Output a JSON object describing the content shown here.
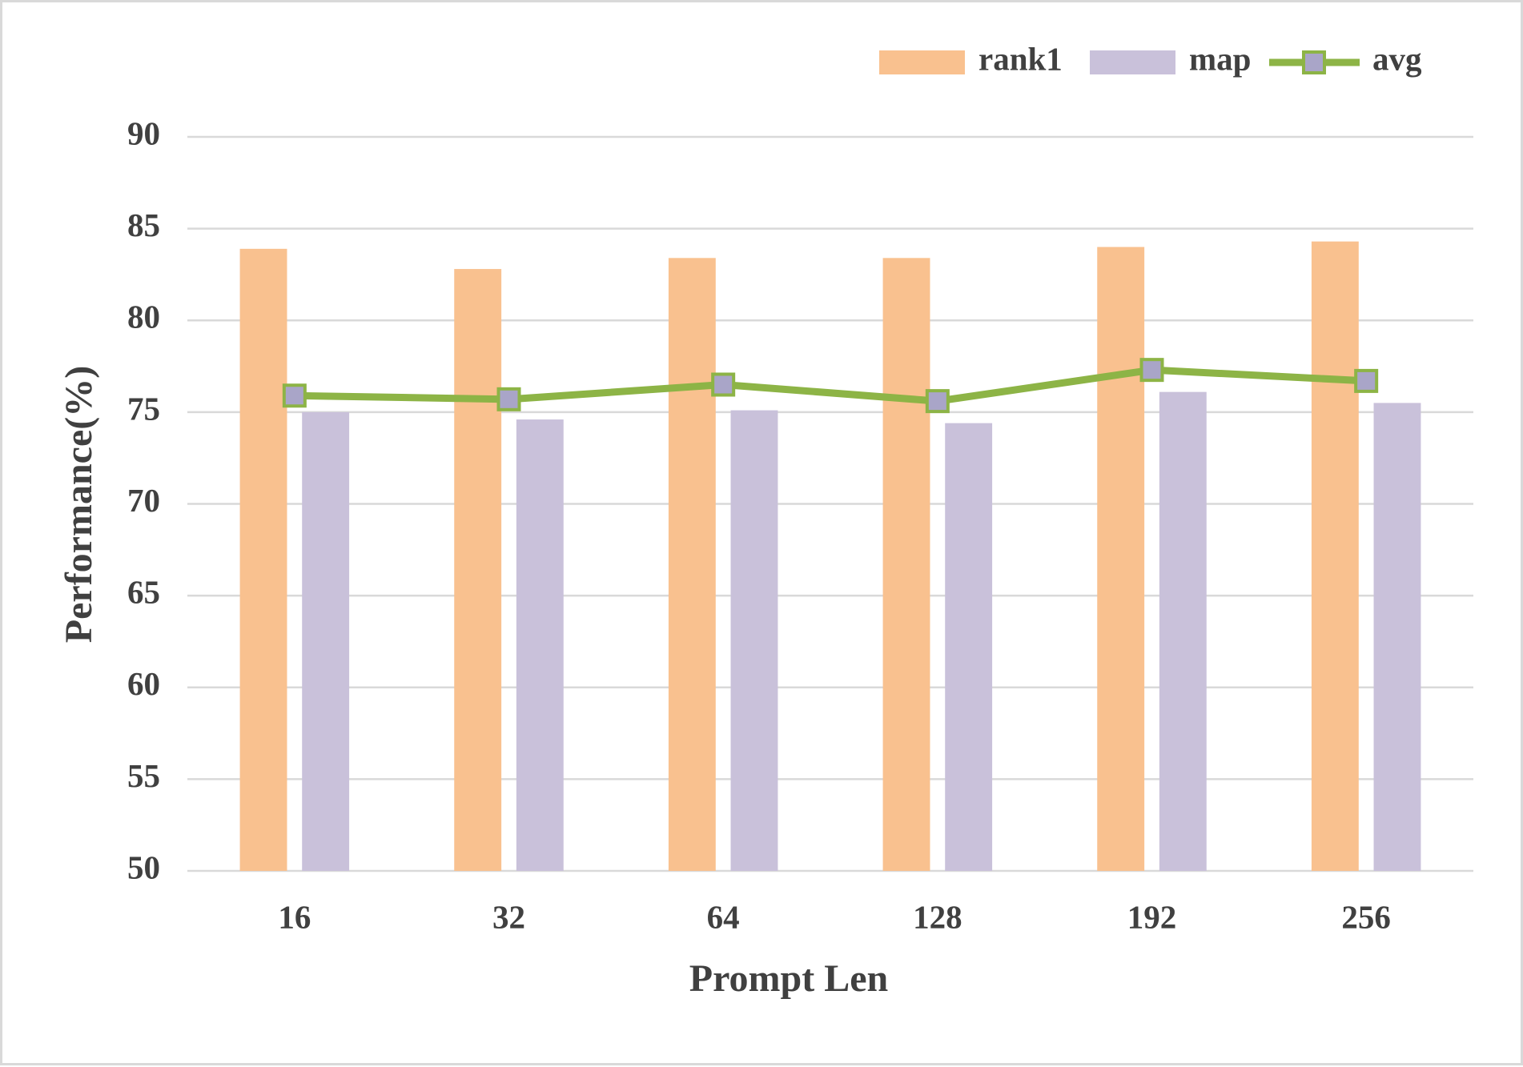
{
  "chart_data": {
    "type": "bar",
    "x_label": "Prompt Len",
    "y_label": "Performance(%)",
    "categories": [
      "16",
      "32",
      "64",
      "128",
      "192",
      "256"
    ],
    "series": [
      {
        "name": "rank1",
        "type": "bar",
        "color": "#f9c18f",
        "values": [
          83.9,
          82.8,
          83.4,
          83.4,
          84.0,
          84.3
        ]
      },
      {
        "name": "map",
        "type": "bar",
        "color": "#c9c1da",
        "values": [
          75.0,
          74.6,
          75.1,
          74.4,
          76.1,
          75.5
        ]
      },
      {
        "name": "avg",
        "type": "line",
        "color": "#8db446",
        "marker_color": "#a9a5c8",
        "values": [
          75.9,
          75.7,
          76.5,
          75.6,
          77.3,
          76.7
        ]
      }
    ],
    "ylim": [
      50,
      90
    ],
    "yticks": [
      50,
      55,
      60,
      65,
      70,
      75,
      80,
      85,
      90
    ],
    "grid": true,
    "legend": "top-right"
  }
}
